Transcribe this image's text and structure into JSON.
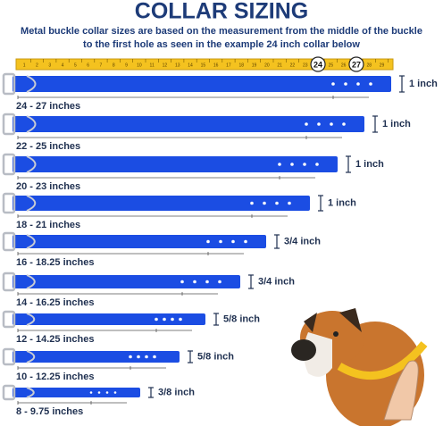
{
  "title": "COLLAR SIZING",
  "subtitle": [
    "Metal buckle collar sizes are based on the measurement from the middle of the buckle",
    "to the first hole as seen in the example 24 inch collar below"
  ],
  "ruler": {
    "ticks": [
      1,
      2,
      3,
      4,
      5,
      6,
      7,
      8,
      9,
      10,
      11,
      12,
      13,
      14,
      15,
      16,
      17,
      18,
      19,
      20,
      21,
      22,
      23,
      24,
      25,
      26,
      27,
      28,
      29
    ],
    "markers": [
      24,
      27
    ]
  },
  "collars": [
    {
      "range": "24 - 27 inches",
      "width": "1 inch"
    },
    {
      "range": "22 - 25 inches",
      "width": "1 inch"
    },
    {
      "range": "20 - 23 inches",
      "width": "1 inch"
    },
    {
      "range": "18 - 21 inches",
      "width": "1 inch"
    },
    {
      "range": "16 - 18.25 inches",
      "width": "3/4 inch"
    },
    {
      "range": "14 - 16.25 inches",
      "width": "3/4 inch"
    },
    {
      "range": "12 - 14.25 inches",
      "width": "5/8 inch"
    },
    {
      "range": "10 - 12.25 inches",
      "width": "5/8 inch"
    },
    {
      "range": "8 - 9.75 inches",
      "width": "3/8 inch"
    }
  ]
}
